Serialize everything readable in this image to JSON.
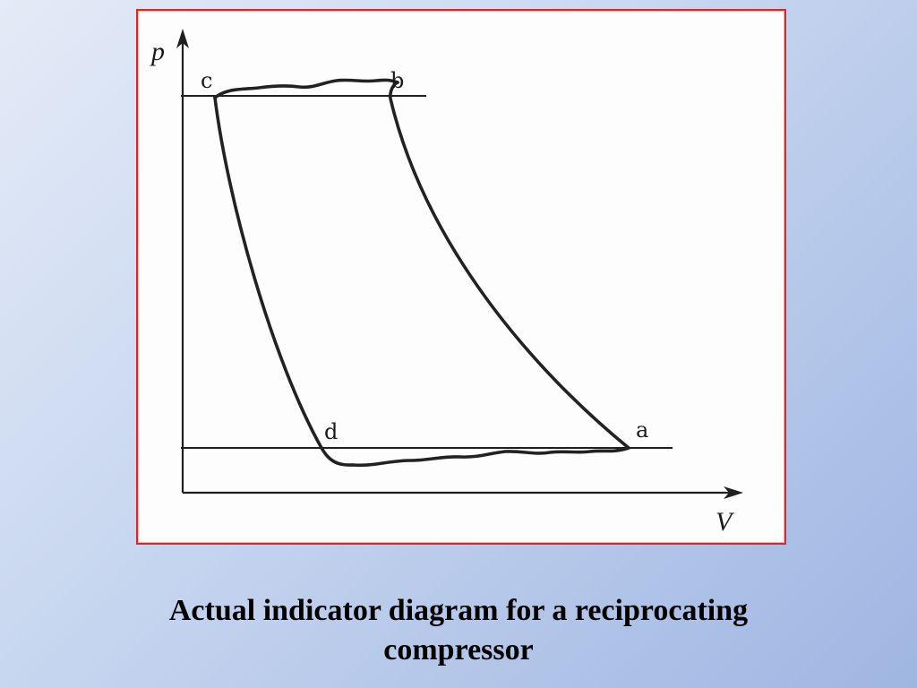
{
  "diagram": {
    "axes": {
      "y_label": "p",
      "x_label": "V"
    },
    "points": {
      "a": "a",
      "b": "b",
      "c": "c",
      "d": "d"
    }
  },
  "caption": {
    "line1": "Actual indicator diagram for a reciprocating",
    "line2": "compressor"
  }
}
